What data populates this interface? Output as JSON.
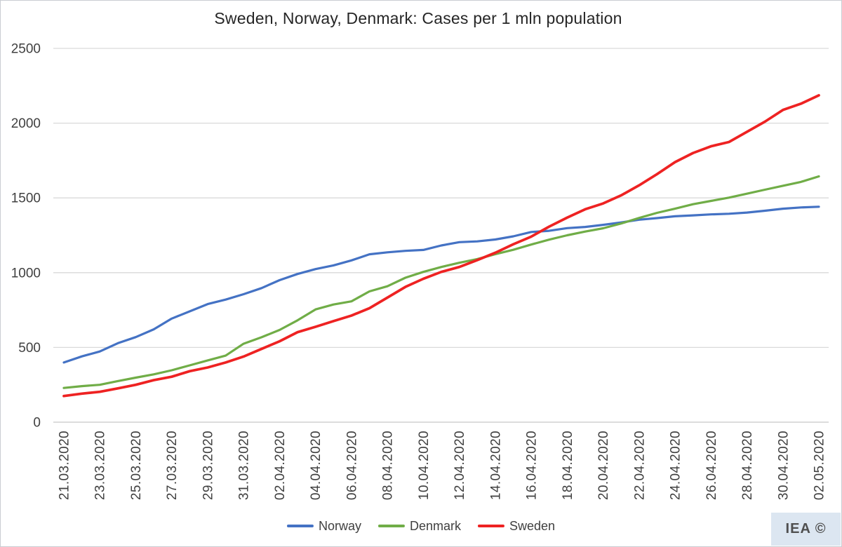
{
  "title": "Sweden, Norway, Denmark: Cases per 1 mln population",
  "watermark": {
    "label": "IEA ©"
  },
  "colors": {
    "grid": "#D9D9D9",
    "axis": "#C6C6C6",
    "tick_text": "#404040",
    "title_text": "#262626",
    "watermark_bg": "#DCE6F1",
    "watermark_text": "#4F4F4F"
  },
  "chart_data": {
    "type": "line",
    "title": "Sweden, Norway, Denmark: Cases per 1 mln population",
    "xlabel": "",
    "ylabel": "",
    "ylim": [
      0,
      2500
    ],
    "y_ticks": [
      0,
      500,
      1000,
      1500,
      2000,
      2500
    ],
    "grid": true,
    "legend_position": "bottom",
    "x": [
      "21.03.2020",
      "22.03.2020",
      "23.03.2020",
      "24.03.2020",
      "25.03.2020",
      "26.03.2020",
      "27.03.2020",
      "28.03.2020",
      "29.03.2020",
      "30.03.2020",
      "31.03.2020",
      "01.04.2020",
      "02.04.2020",
      "03.04.2020",
      "04.04.2020",
      "05.04.2020",
      "06.04.2020",
      "07.04.2020",
      "08.04.2020",
      "09.04.2020",
      "10.04.2020",
      "11.04.2020",
      "12.04.2020",
      "13.04.2020",
      "14.04.2020",
      "15.04.2020",
      "16.04.2020",
      "17.04.2020",
      "18.04.2020",
      "19.04.2020",
      "20.04.2020",
      "21.04.2020",
      "22.04.2020",
      "23.04.2020",
      "24.04.2020",
      "25.04.2020",
      "26.04.2020",
      "27.04.2020",
      "28.04.2020",
      "29.04.2020",
      "30.04.2020",
      "01.05.2020",
      "02.05.2020"
    ],
    "x_tick_labels": [
      "21.03.2020",
      "23.03.2020",
      "25.03.2020",
      "27.03.2020",
      "29.03.2020",
      "31.03.2020",
      "02.04.2020",
      "04.04.2020",
      "06.04.2020",
      "08.04.2020",
      "10.04.2020",
      "12.04.2020",
      "14.04.2020",
      "16.04.2020",
      "18.04.2020",
      "20.04.2020",
      "22.04.2020",
      "24.04.2020",
      "26.04.2020",
      "28.04.2020",
      "30.04.2020",
      "02.05.2020"
    ],
    "series": [
      {
        "name": "Norway",
        "color": "#4472C4",
        "values": [
          399,
          440,
          473,
          528,
          569,
          621,
          693,
          741,
          790,
          820,
          856,
          897,
          950,
          991,
          1024,
          1049,
          1082,
          1123,
          1136,
          1146,
          1152,
          1182,
          1204,
          1209,
          1222,
          1243,
          1272,
          1280,
          1298,
          1306,
          1320,
          1336,
          1354,
          1365,
          1377,
          1383,
          1390,
          1394,
          1402,
          1414,
          1428,
          1436,
          1441
        ]
      },
      {
        "name": "Denmark",
        "color": "#70AD47",
        "values": [
          229,
          241,
          250,
          275,
          298,
          320,
          347,
          380,
          413,
          445,
          525,
          568,
          617,
          681,
          754,
          787,
          808,
          875,
          909,
          966,
          1005,
          1038,
          1066,
          1091,
          1124,
          1153,
          1188,
          1221,
          1250,
          1275,
          1297,
          1329,
          1366,
          1400,
          1428,
          1458,
          1480,
          1502,
          1528,
          1555,
          1581,
          1607,
          1644
        ]
      },
      {
        "name": "Sweden",
        "color": "#EE2222",
        "values": [
          175,
          191,
          203,
          226,
          250,
          281,
          304,
          341,
          366,
          399,
          439,
          490,
          541,
          602,
          638,
          676,
          713,
          762,
          833,
          905,
          959,
          1005,
          1038,
          1084,
          1133,
          1190,
          1241,
          1308,
          1368,
          1424,
          1463,
          1517,
          1584,
          1659,
          1739,
          1800,
          1845,
          1874,
          1942,
          2010,
          2088,
          2130,
          2186
        ]
      }
    ]
  }
}
